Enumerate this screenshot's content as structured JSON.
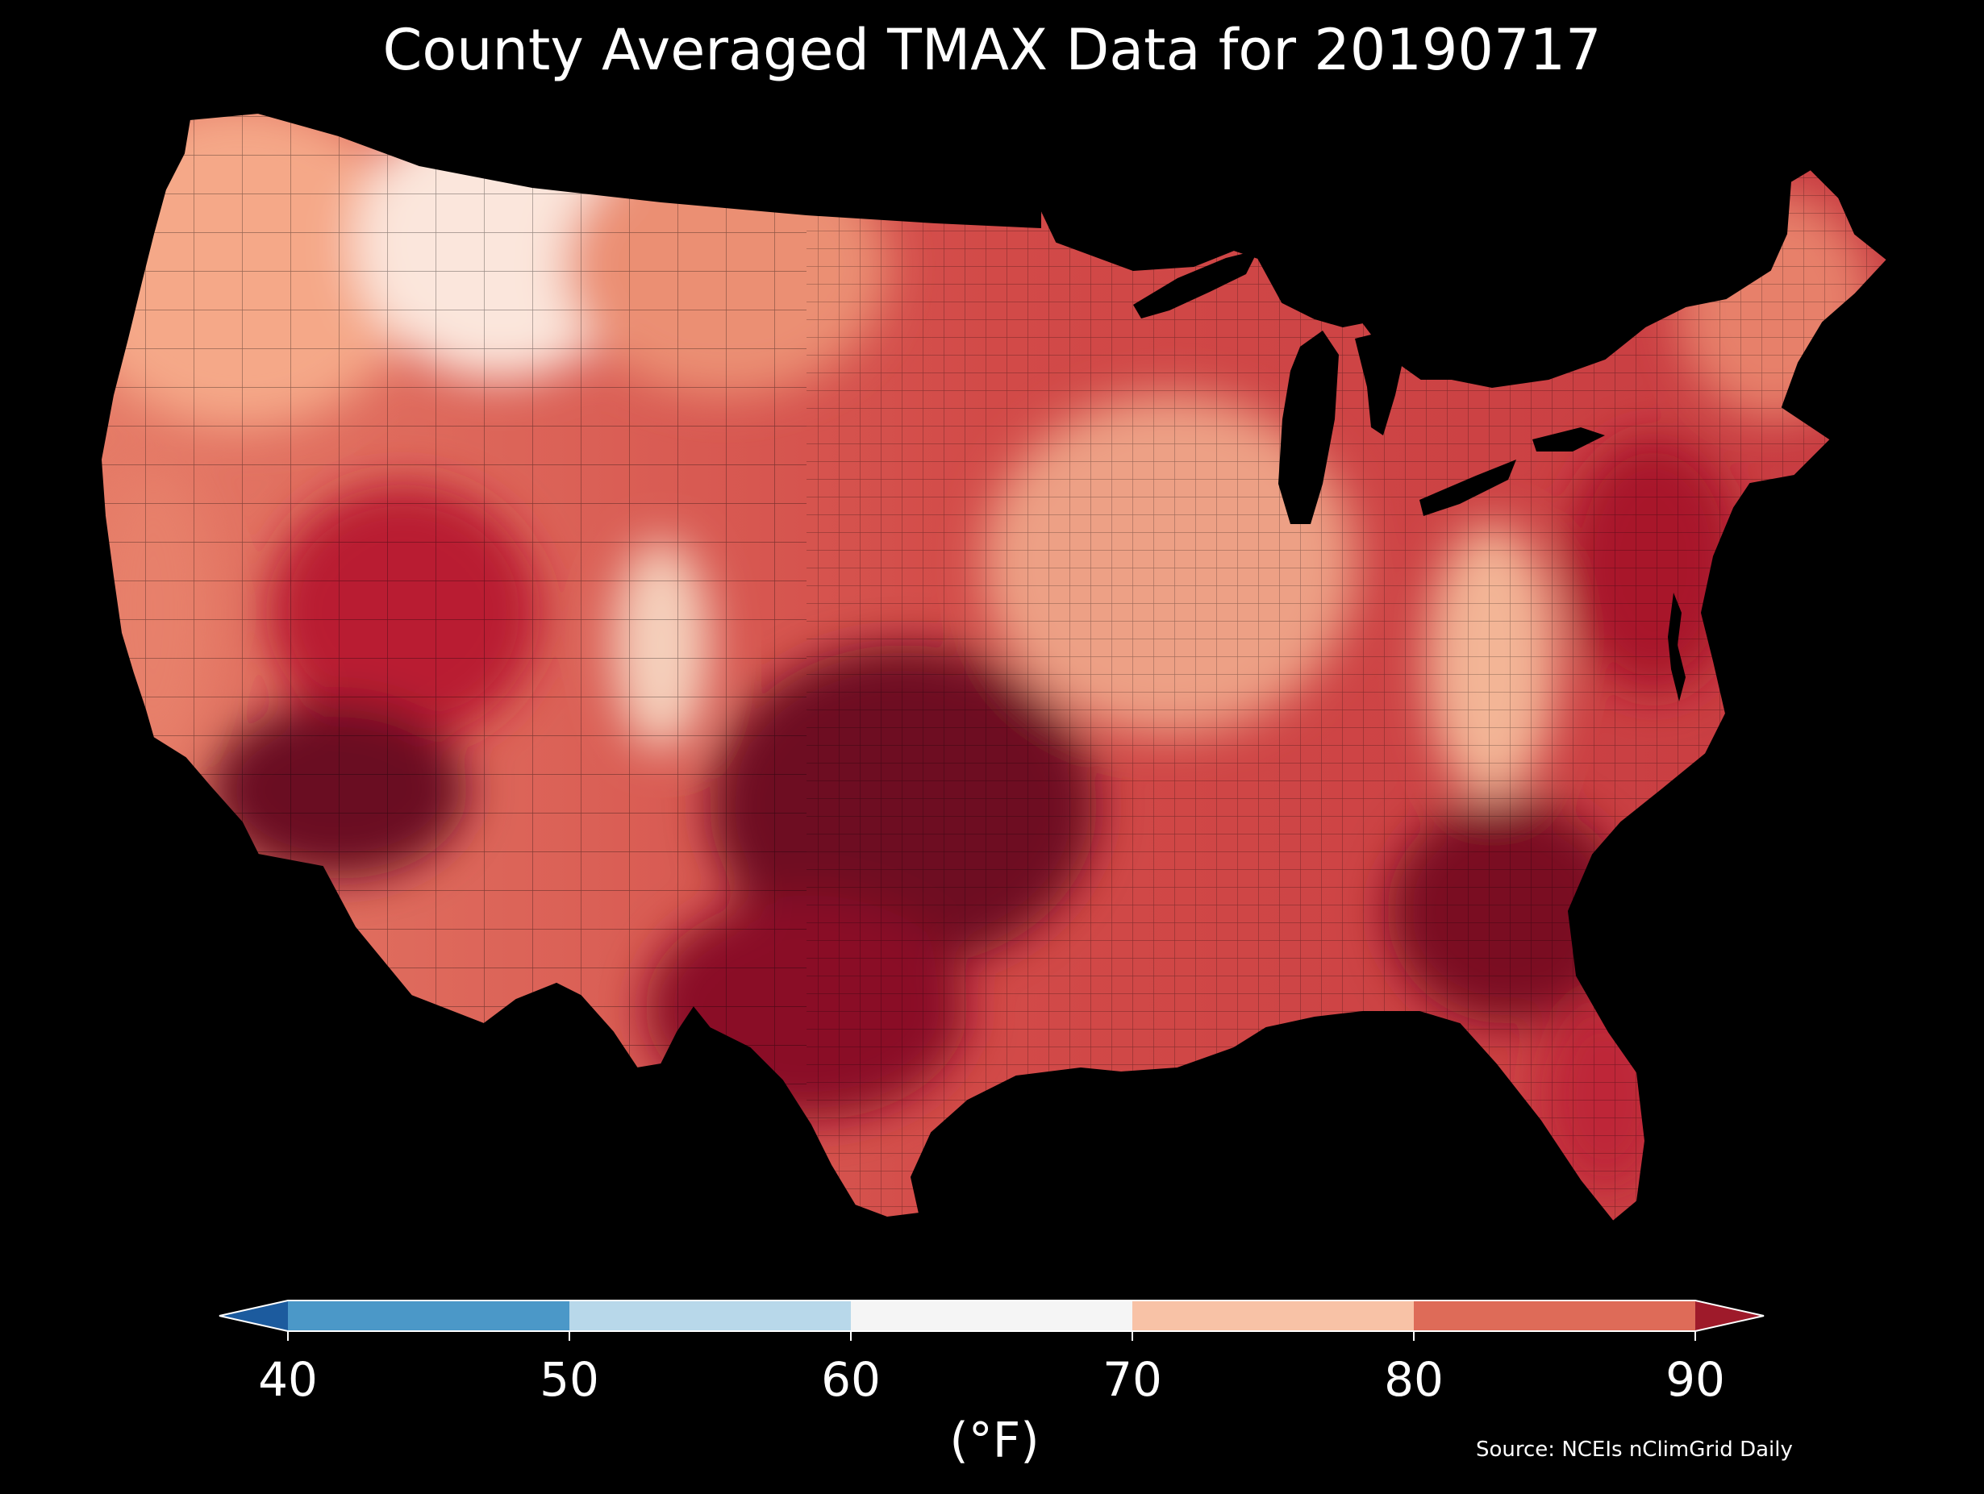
{
  "title": "County Averaged TMAX Data for 20190717",
  "source": "Source: NCEIs nClimGrid Daily",
  "colorbar": {
    "label": "(°F)",
    "ticks": [
      "40",
      "50",
      "60",
      "70",
      "80",
      "90"
    ],
    "bins": [
      {
        "from": 40,
        "to": 50,
        "color": "#4b98c8"
      },
      {
        "from": 50,
        "to": 60,
        "color": "#b8d8ea"
      },
      {
        "from": 60,
        "to": 70,
        "color": "#f5f5f5"
      },
      {
        "from": 70,
        "to": 80,
        "color": "#f8c2a6"
      },
      {
        "from": 80,
        "to": 90,
        "color": "#de6b58"
      }
    ],
    "under_color": "#1c5b9e",
    "over_color": "#9e1a2a"
  },
  "colors": {
    "background": "#000000",
    "near_70": "#fbe6dc",
    "mid_70s": "#f5a888",
    "low_80s": "#e7806a",
    "mid_80s": "#d24a48",
    "high_80s": "#b91e32",
    "over_90": "#7a0a22",
    "hottest": "#5e0018"
  }
}
